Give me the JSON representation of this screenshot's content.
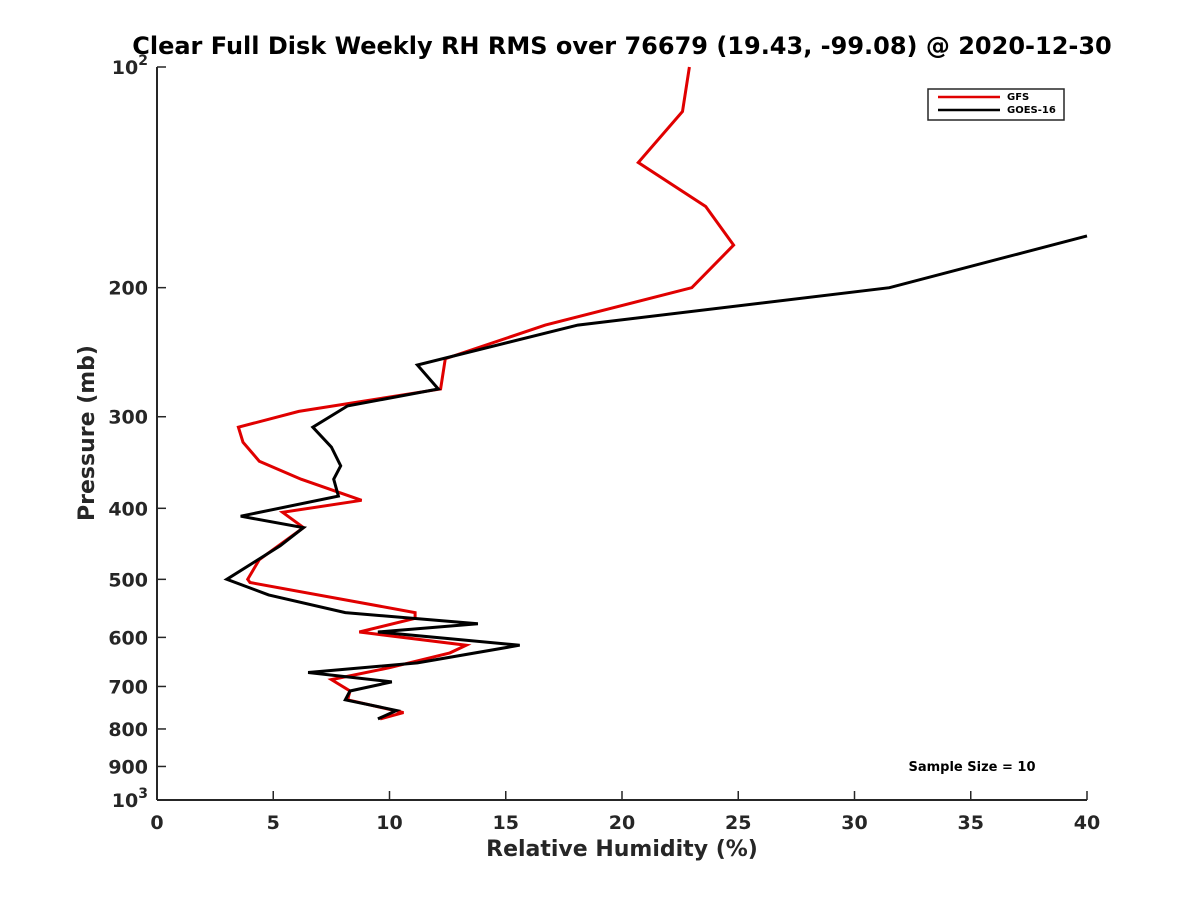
{
  "chart_data": {
    "type": "line",
    "title": "Clear Full Disk Weekly RH RMS over 76679 (19.43, -99.08) @ 2020-12-30",
    "xlabel": "Relative Humidity (%)",
    "ylabel": "Pressure (mb)",
    "xlim": [
      0,
      40
    ],
    "ylim": [
      100,
      1000
    ],
    "y_scale": "log",
    "y_reversed": true,
    "grid": false,
    "legend_position": "top-right",
    "x_ticks": [
      "0",
      "5",
      "10",
      "15",
      "20",
      "25",
      "30",
      "35",
      "40"
    ],
    "y_ticks": [
      {
        "value": 100,
        "base": "10",
        "exp": "2"
      },
      {
        "value": 200,
        "label": "200"
      },
      {
        "value": 300,
        "label": "300"
      },
      {
        "value": 400,
        "label": "400"
      },
      {
        "value": 500,
        "label": "500"
      },
      {
        "value": 600,
        "label": "600"
      },
      {
        "value": 700,
        "label": "700"
      },
      {
        "value": 800,
        "label": "800"
      },
      {
        "value": 900,
        "label": "900"
      },
      {
        "value": 1000,
        "base": "10",
        "exp": "3"
      }
    ],
    "series": [
      {
        "name": "GFS",
        "color": "#e00000",
        "points": [
          [
            22.9,
            100
          ],
          [
            22.6,
            115
          ],
          [
            20.7,
            135
          ],
          [
            23.6,
            155
          ],
          [
            24.8,
            175
          ],
          [
            23.0,
            200
          ],
          [
            16.7,
            225
          ],
          [
            12.4,
            250
          ],
          [
            12.2,
            275
          ],
          [
            6.1,
            295
          ],
          [
            3.5,
            310
          ],
          [
            3.7,
            325
          ],
          [
            4.4,
            345
          ],
          [
            6.2,
            365
          ],
          [
            8.8,
            390
          ],
          [
            5.4,
            405
          ],
          [
            6.3,
            425
          ],
          [
            4.4,
            470
          ],
          [
            3.9,
            500
          ],
          [
            4.0,
            505
          ],
          [
            11.1,
            555
          ],
          [
            11.1,
            565
          ],
          [
            8.7,
            590
          ],
          [
            13.3,
            615
          ],
          [
            12.6,
            630
          ],
          [
            10.0,
            660
          ],
          [
            7.5,
            685
          ],
          [
            8.3,
            710
          ],
          [
            8.2,
            730
          ],
          [
            10.6,
            760
          ],
          [
            9.6,
            775
          ]
        ]
      },
      {
        "name": "GOES-16",
        "color": "#000000",
        "points": [
          [
            40.0,
            170
          ],
          [
            31.5,
            200
          ],
          [
            18.1,
            225
          ],
          [
            11.2,
            255
          ],
          [
            12.1,
            275
          ],
          [
            8.2,
            290
          ],
          [
            6.7,
            310
          ],
          [
            7.5,
            330
          ],
          [
            7.9,
            350
          ],
          [
            7.6,
            365
          ],
          [
            7.8,
            385
          ],
          [
            3.6,
            410
          ],
          [
            6.3,
            425
          ],
          [
            5.3,
            450
          ],
          [
            3.0,
            500
          ],
          [
            4.8,
            525
          ],
          [
            8.1,
            555
          ],
          [
            13.8,
            575
          ],
          [
            9.5,
            590
          ],
          [
            15.6,
            615
          ],
          [
            11.2,
            650
          ],
          [
            6.5,
            670
          ],
          [
            10.1,
            690
          ],
          [
            8.3,
            710
          ],
          [
            8.1,
            730
          ],
          [
            10.3,
            755
          ],
          [
            9.5,
            775
          ]
        ]
      }
    ],
    "annotations": {
      "sample_size": "Sample Size = 10"
    }
  }
}
